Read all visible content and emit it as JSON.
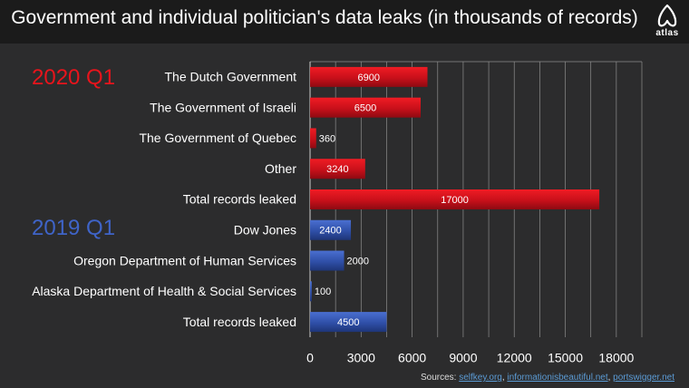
{
  "title": "Government and individual politician's data leaks (in thousands of records)",
  "logo_text": "atlas",
  "periods": [
    {
      "label": "2020 Q1",
      "color": "#e8141c"
    },
    {
      "label": "2019 Q1",
      "color": "#3f64c8"
    }
  ],
  "sources": {
    "prefix": "Sources:",
    "links": [
      "selfkey.org",
      "informationisbeautiful.net",
      "portswigger.net"
    ]
  },
  "chart_data": {
    "type": "bar",
    "orientation": "horizontal",
    "categories": [
      "The Dutch Government",
      "The Government of Israeli",
      "The Government of Quebec",
      "Other",
      "Total records leaked",
      "Dow Jones",
      "Oregon Department of Human Services",
      "Alaska Department of Health & Social Services",
      "Total records leaked"
    ],
    "values": [
      6900,
      6500,
      360,
      3240,
      17000,
      2400,
      2000,
      100,
      4500
    ],
    "groups": [
      "2020 Q1",
      "2020 Q1",
      "2020 Q1",
      "2020 Q1",
      "2020 Q1",
      "2019 Q1",
      "2019 Q1",
      "2019 Q1",
      "2019 Q1"
    ],
    "colors": {
      "2020 Q1": "#c8101a",
      "2019 Q1": "#2f4fa8"
    },
    "xlim": [
      0,
      19500
    ],
    "xticks": [
      0,
      3000,
      6000,
      9000,
      12000,
      15000,
      18000
    ],
    "grid": true,
    "data_labels": true
  }
}
